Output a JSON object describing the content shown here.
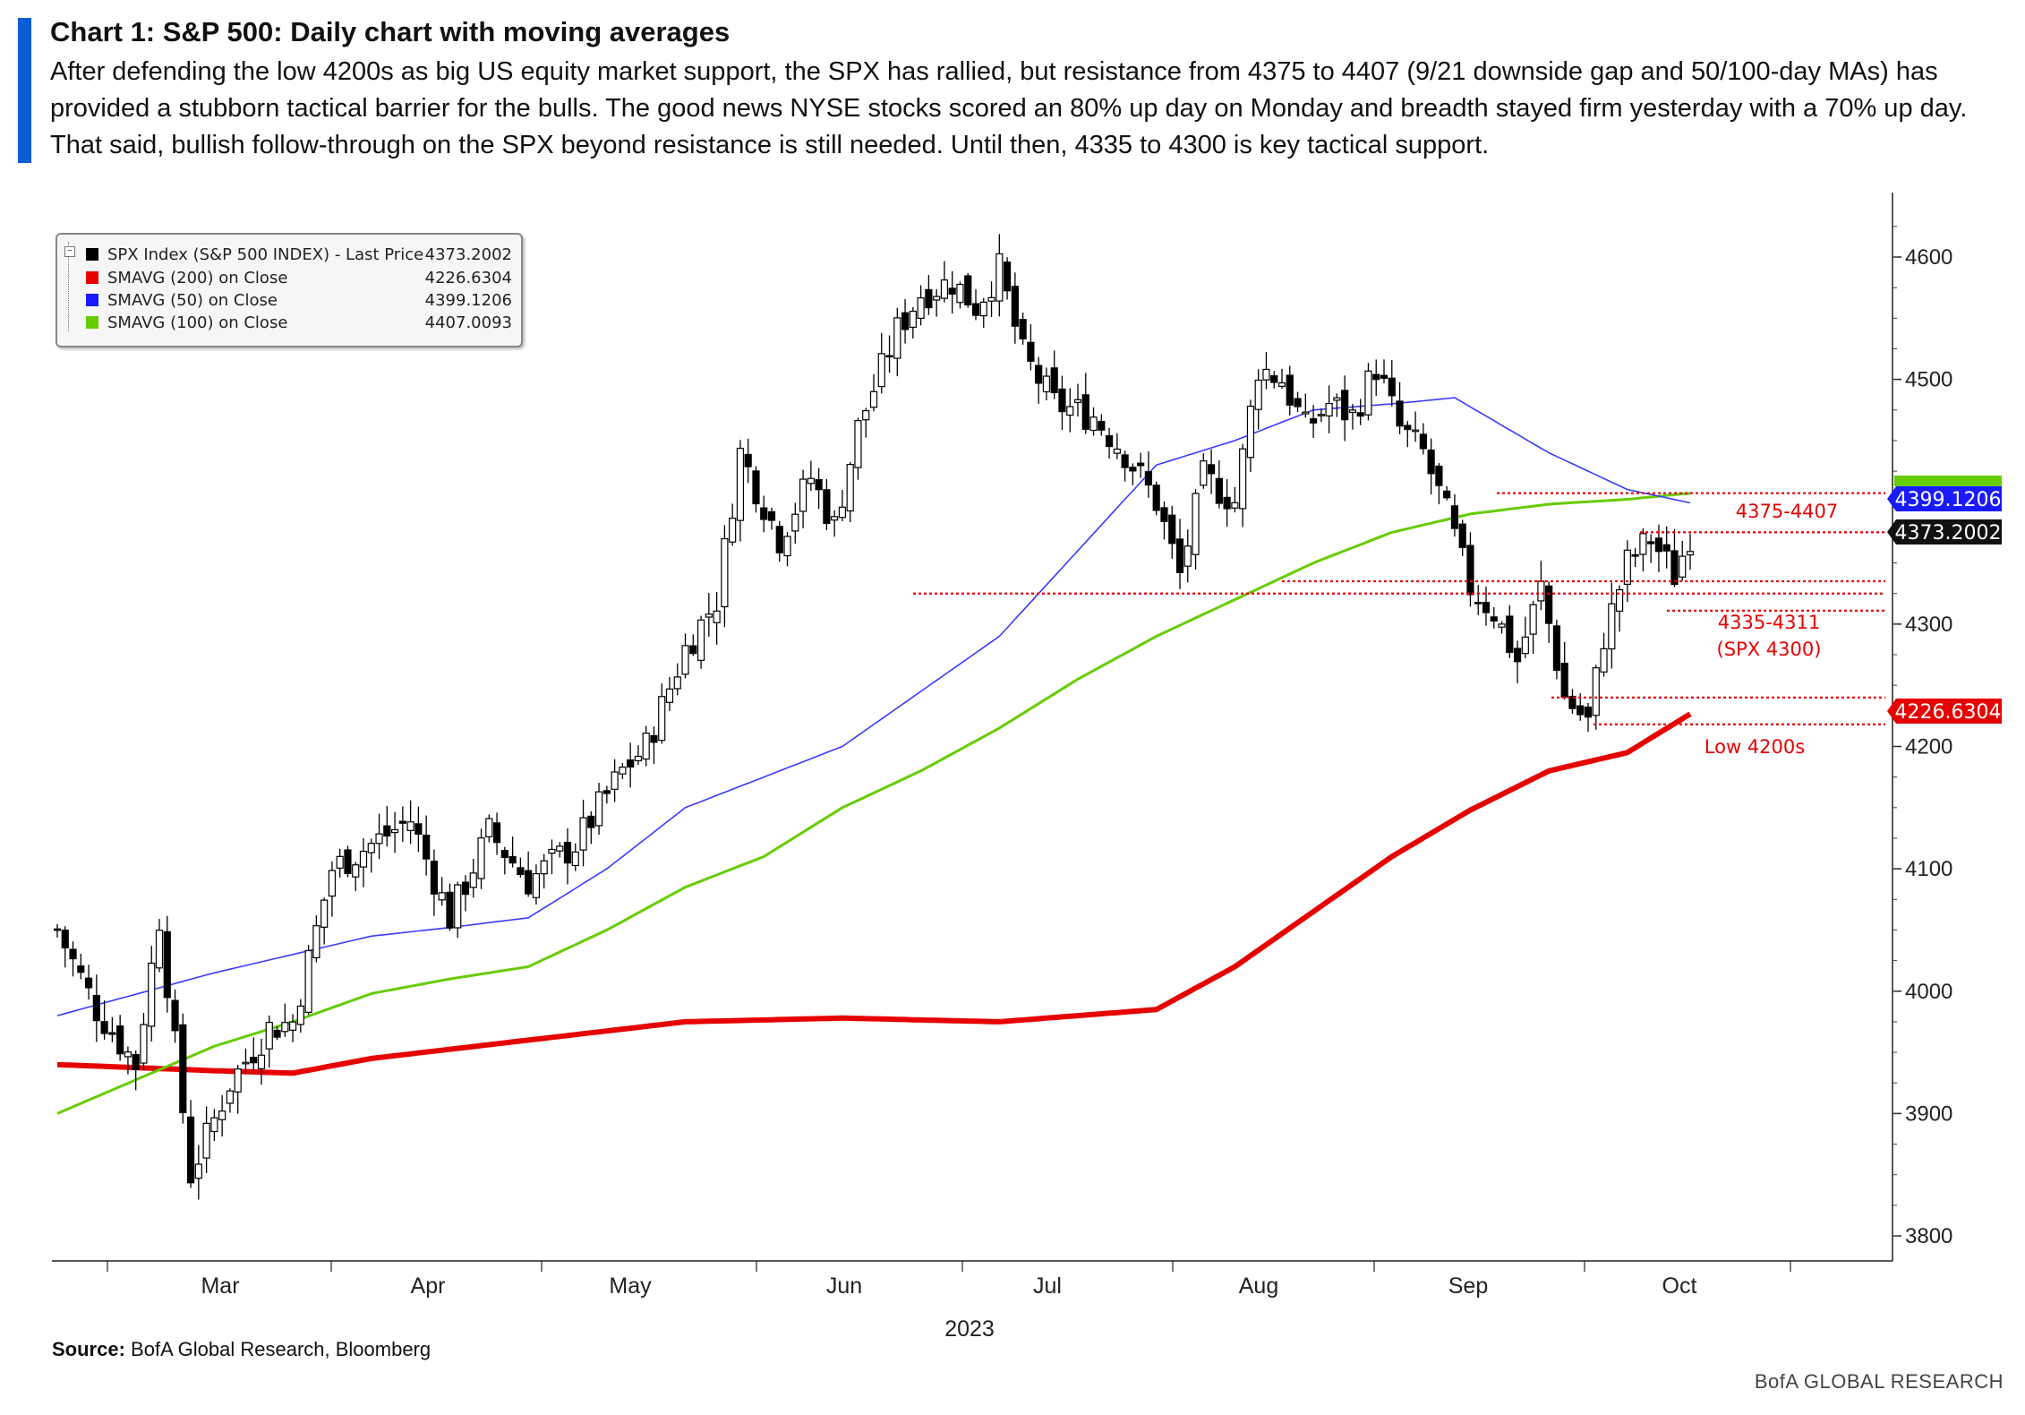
{
  "header": {
    "title": "Chart 1: S&P 500: Daily chart with moving averages",
    "description_lines": [
      "After defending the low 4200s as big US equity market support, the SPX has rallied, but resistance from 4375 to 4407 (9/21 downside gap and 50/100-day MAs) has",
      "provided a stubborn tactical barrier for the bulls. The good news NYSE stocks scored an 80% up day on Monday and breadth stayed firm yesterday with a 70% up day.",
      "That said, bullish follow-through on the SPX beyond resistance is still needed. Until then, 4335 to 4300 is key tactical support."
    ]
  },
  "legend": [
    {
      "label": "SPX Index (S&P 500 INDEX) - Last Price",
      "value": "4373.2002",
      "color": "#000000"
    },
    {
      "label": "SMAVG (200)  on Close",
      "value": "4226.6304",
      "color": "#e60000"
    },
    {
      "label": "SMAVG (50)  on Close",
      "value": "4399.1206",
      "color": "#1a1aff"
    },
    {
      "label": "SMAVG (100)  on Close",
      "value": "4407.0093",
      "color": "#66cc00"
    }
  ],
  "chart_data": {
    "type": "candlestick",
    "x_ticks": [
      "Mar",
      "Apr",
      "May",
      "Jun",
      "Jul",
      "Aug",
      "Sep",
      "Oct"
    ],
    "x_year_label": "2023",
    "y_ticks": [
      3800,
      3900,
      4000,
      4100,
      4200,
      4300,
      4500,
      4600
    ],
    "ylim": [
      3775,
      4645
    ],
    "price_tags": [
      {
        "text": "4399.1206",
        "color": "#1a1aff"
      },
      {
        "text": "4373.2002",
        "color": "#111111"
      },
      {
        "text": "4226.6304",
        "color": "#e60000"
      }
    ],
    "annotations": [
      {
        "text": "4375-4407",
        "color": "#e60000"
      },
      {
        "text": "4335-4311",
        "color": "#e60000"
      },
      {
        "text": "(SPX 4300)",
        "color": "#e60000"
      },
      {
        "text": "Low 4200s",
        "color": "#e60000"
      }
    ],
    "resistance_levels": [
      4407,
      4375
    ],
    "support_levels": [
      4335,
      4325,
      4311,
      4240,
      4218
    ],
    "close_anchors": [
      [
        0,
        4050
      ],
      [
        5,
        3985
      ],
      [
        10,
        3940
      ],
      [
        13,
        4060
      ],
      [
        17,
        3850
      ],
      [
        22,
        3925
      ],
      [
        27,
        3970
      ],
      [
        30,
        3975
      ],
      [
        35,
        4100
      ],
      [
        40,
        4120
      ],
      [
        45,
        4140
      ],
      [
        50,
        4060
      ],
      [
        55,
        4130
      ],
      [
        60,
        4090
      ],
      [
        66,
        4120
      ],
      [
        72,
        4180
      ],
      [
        75,
        4200
      ],
      [
        80,
        4280
      ],
      [
        84,
        4320
      ],
      [
        87,
        4440
      ],
      [
        92,
        4370
      ],
      [
        96,
        4420
      ],
      [
        99,
        4380
      ],
      [
        102,
        4460
      ],
      [
        107,
        4540
      ],
      [
        110,
        4570
      ],
      [
        114,
        4580
      ],
      [
        117,
        4560
      ],
      [
        120,
        4590
      ],
      [
        123,
        4520
      ],
      [
        127,
        4480
      ],
      [
        132,
        4470
      ],
      [
        136,
        4440
      ],
      [
        140,
        4400
      ],
      [
        143,
        4340
      ],
      [
        146,
        4420
      ],
      [
        150,
        4400
      ],
      [
        153,
        4510
      ],
      [
        156,
        4500
      ],
      [
        159,
        4460
      ],
      [
        162,
        4480
      ],
      [
        165,
        4470
      ],
      [
        168,
        4510
      ],
      [
        171,
        4460
      ],
      [
        174,
        4440
      ],
      [
        177,
        4390
      ],
      [
        180,
        4330
      ],
      [
        183,
        4310
      ],
      [
        186,
        4270
      ],
      [
        189,
        4330
      ],
      [
        192,
        4240
      ],
      [
        195,
        4220
      ],
      [
        197,
        4290
      ],
      [
        200,
        4350
      ],
      [
        203,
        4370
      ],
      [
        206,
        4340
      ],
      [
        208,
        4373.2
      ]
    ],
    "sma200_anchors": [
      [
        0,
        3940
      ],
      [
        20,
        3935
      ],
      [
        30,
        3933
      ],
      [
        40,
        3945
      ],
      [
        60,
        3960
      ],
      [
        80,
        3975
      ],
      [
        100,
        3978
      ],
      [
        120,
        3975
      ],
      [
        140,
        3985
      ],
      [
        150,
        4020
      ],
      [
        160,
        4065
      ],
      [
        170,
        4110
      ],
      [
        180,
        4148
      ],
      [
        190,
        4180
      ],
      [
        200,
        4195
      ],
      [
        208,
        4226.6
      ]
    ],
    "sma50_anchors": [
      [
        0,
        3980
      ],
      [
        20,
        4015
      ],
      [
        30,
        4030
      ],
      [
        40,
        4045
      ],
      [
        50,
        4052
      ],
      [
        60,
        4060
      ],
      [
        70,
        4100
      ],
      [
        80,
        4150
      ],
      [
        100,
        4200
      ],
      [
        120,
        4290
      ],
      [
        140,
        4430
      ],
      [
        150,
        4450
      ],
      [
        160,
        4475
      ],
      [
        170,
        4480
      ],
      [
        178,
        4485
      ],
      [
        190,
        4440
      ],
      [
        200,
        4410
      ],
      [
        208,
        4399.1
      ]
    ],
    "sma100_anchors": [
      [
        0,
        3900
      ],
      [
        20,
        3955
      ],
      [
        30,
        3975
      ],
      [
        40,
        3998
      ],
      [
        50,
        4010
      ],
      [
        60,
        4020
      ],
      [
        70,
        4050
      ],
      [
        80,
        4085
      ],
      [
        90,
        4110
      ],
      [
        100,
        4150
      ],
      [
        110,
        4180
      ],
      [
        120,
        4215
      ],
      [
        130,
        4255
      ],
      [
        140,
        4290
      ],
      [
        150,
        4320
      ],
      [
        160,
        4350
      ],
      [
        170,
        4375
      ],
      [
        180,
        4390
      ],
      [
        190,
        4398
      ],
      [
        200,
        4402
      ],
      [
        208,
        4407
      ]
    ]
  },
  "source": {
    "label": "Source:",
    "text": "BofA Global Research, Bloomberg"
  },
  "footer": {
    "brand": "BofA GLOBAL RESEARCH"
  }
}
